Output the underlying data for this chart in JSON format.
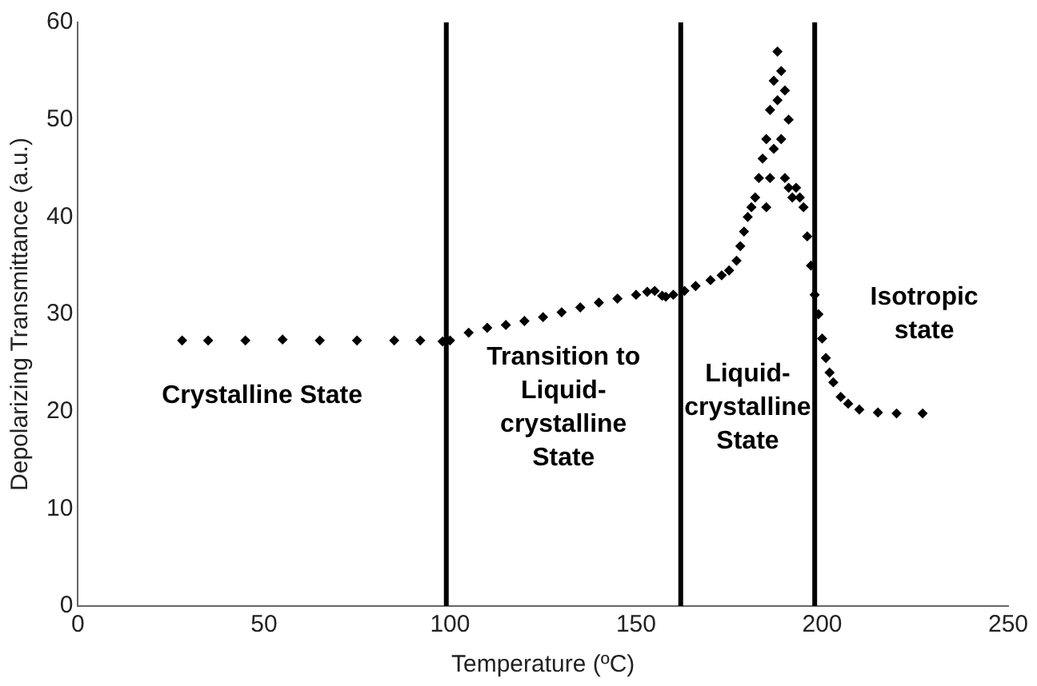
{
  "chart_data": {
    "type": "scatter",
    "xlabel": "Temperature (ºC)",
    "ylabel": "Depolarizing Transmittance (a.u.)",
    "xlim": [
      0,
      250
    ],
    "xticks": [
      0,
      50,
      100,
      150,
      200,
      250
    ],
    "ylim": [
      0,
      60
    ],
    "yticks": [
      0,
      10,
      20,
      30,
      40,
      50,
      60
    ],
    "grid": false,
    "legend": false,
    "marker": "diamond",
    "series": [
      {
        "color": "#000000",
        "x": [
          28,
          35,
          45,
          55,
          65,
          75,
          85,
          92,
          98,
          100,
          105,
          110,
          115,
          120,
          125,
          130,
          135,
          140,
          145,
          150,
          153,
          155,
          157,
          158,
          160,
          163,
          166,
          170,
          173,
          175,
          177,
          178,
          179,
          180,
          181,
          182,
          183,
          184,
          185,
          185,
          186,
          186,
          187,
          187,
          188,
          188,
          189,
          189,
          190,
          190,
          191,
          191,
          192,
          193,
          194,
          195,
          196,
          197,
          198,
          199,
          200,
          201,
          202,
          203,
          205,
          207,
          210,
          215,
          220,
          227
        ],
        "values": [
          27.3,
          27.3,
          27.3,
          27.4,
          27.3,
          27.3,
          27.3,
          27.3,
          27.2,
          27.3,
          28.1,
          28.6,
          28.9,
          29.3,
          29.7,
          30.2,
          30.7,
          31.2,
          31.6,
          32.0,
          32.3,
          32.4,
          31.9,
          31.8,
          32.0,
          32.4,
          32.9,
          33.5,
          34.0,
          34.5,
          35.5,
          37,
          38.5,
          40,
          41,
          42,
          44,
          46,
          48,
          41,
          51,
          44,
          54,
          47,
          57,
          52,
          55,
          48,
          53,
          44,
          50,
          43,
          42,
          43,
          42,
          41,
          38,
          35,
          32,
          30,
          27.5,
          25.5,
          24,
          23,
          21.5,
          20.8,
          20.2,
          19.9,
          19.8,
          19.8
        ]
      }
    ],
    "ref_lines": [
      {
        "axis": "x",
        "value": 99,
        "color": "#000000"
      },
      {
        "axis": "x",
        "value": 162,
        "color": "#000000"
      },
      {
        "axis": "x",
        "value": 198,
        "color": "#000000"
      }
    ],
    "annotations": [
      "Crystalline State",
      "Transition to\nLiquid-\ncrystalline\nState",
      "Liquid-\ncrystalline\nState",
      "Isotropic\nstate"
    ]
  }
}
